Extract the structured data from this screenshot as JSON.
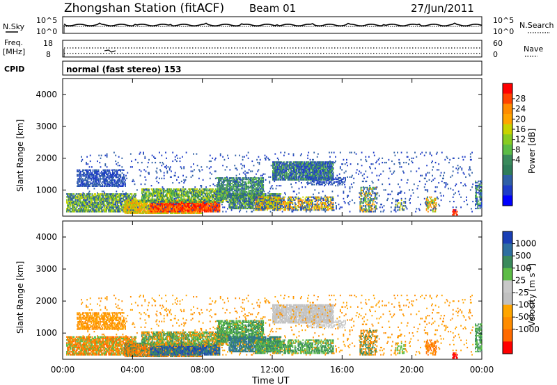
{
  "header": {
    "station": "Zhongshan Station (fitACF)",
    "beam": "Beam 01",
    "date": "27/Jun/2011"
  },
  "strip_labels": {
    "nsky": "N.Sky",
    "nsky_ticks": [
      "10^5",
      "10^0"
    ],
    "nsearch": "N.Search",
    "nsearch_ticks": [
      "10^5",
      "10^0"
    ],
    "freq_line1": "Freq.",
    "freq_line2": "[MHz]",
    "freq_ticks": [
      "18",
      "8"
    ],
    "nave": "Nave",
    "nave_ticks": [
      "60",
      "0"
    ],
    "cpid": "CPID",
    "mode": "normal (fast stereo) 153"
  },
  "chart_data": [
    {
      "type": "heatmap",
      "name": "power",
      "ylabel": "Slant Range [km]",
      "y_ticks": [
        "4000",
        "3000",
        "2000",
        "1000"
      ],
      "y_tick_values": [
        4000,
        3000,
        2000,
        1000
      ],
      "ylim": [
        180,
        4500
      ],
      "xlim": [
        0,
        24
      ],
      "colorbar_label": "Power [dB]",
      "colorbar_ticks": [
        "28",
        "24",
        "20",
        "16",
        "12",
        "8",
        "4"
      ],
      "colorbar_colors": [
        "#ff0000",
        "#ff4400",
        "#ff8c00",
        "#ffa500",
        "#c8d300",
        "#88cc22",
        "#5cbc46",
        "#3a8a5c",
        "#2f7d5a",
        "#2f5fa6",
        "#1e3cc8",
        "#0000ff"
      ]
    },
    {
      "type": "heatmap",
      "name": "velocity",
      "ylabel": "Slant Range [km]",
      "y_ticks": [
        "4000",
        "3000",
        "2000",
        "1000"
      ],
      "y_tick_values": [
        4000,
        3000,
        2000,
        1000
      ],
      "ylim": [
        180,
        4500
      ],
      "xlim": [
        0,
        24
      ],
      "colorbar_label": "Velocity [m s^-1]",
      "colorbar_ticks": [
        "1000",
        "500",
        "100",
        "25",
        "-25",
        "-100",
        "-500",
        "-1000"
      ],
      "colorbar_colors": [
        "#1a3fb5",
        "#2e6fa0",
        "#3a8a5c",
        "#5cbc46",
        "#c8c8c8",
        "#c0c0c0",
        "#ffa500",
        "#ff8c00",
        "#ff6a00",
        "#ff0000"
      ],
      "xlabel": "Time UT",
      "x_ticks": [
        "00:00",
        "04:00",
        "08:00",
        "12:00",
        "16:00",
        "20:00",
        "00:00"
      ],
      "x_tick_values": [
        0,
        4,
        8,
        12,
        16,
        20,
        24
      ]
    }
  ]
}
